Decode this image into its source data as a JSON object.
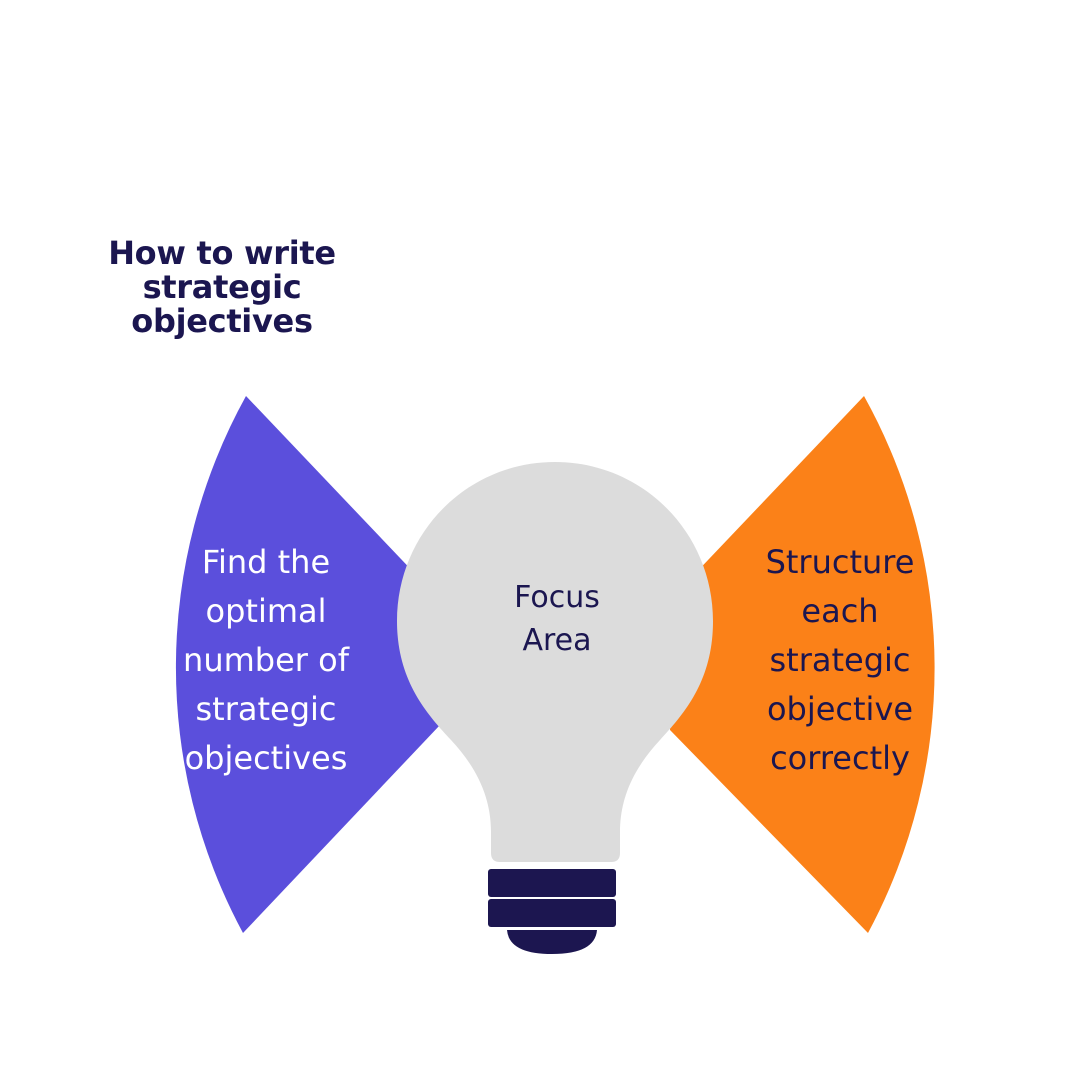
{
  "title": "How to write\nstrategic\nobjectives",
  "center": {
    "label": "Focus\nArea"
  },
  "left": {
    "label": "Find the\noptimal\nnumber of\nstrategic\nobjectives"
  },
  "right": {
    "label": "Structure\neach\nstrategic\nobjective\ncorrectly"
  },
  "colors": {
    "left_petal": "#5b4fdc",
    "right_petal": "#fb8118",
    "bulb": "#dcdcdc",
    "base": "#1c1650",
    "text_dark": "#1b1650",
    "text_light": "#ffffff"
  },
  "icons": {
    "center": "lightbulb-icon"
  }
}
